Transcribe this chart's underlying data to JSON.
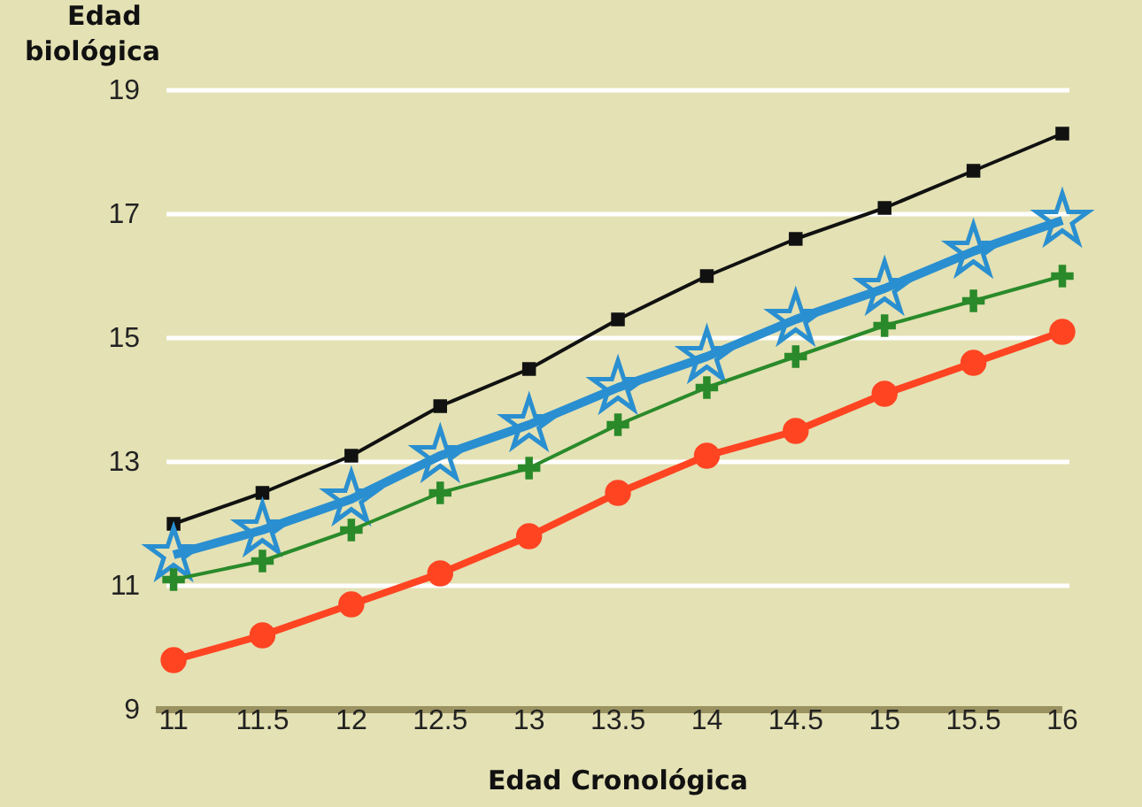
{
  "chart_data": {
    "type": "line",
    "xlabel": "Edad Cronológica",
    "ylabel": "Edad\nbiológica",
    "x": [
      11,
      11.5,
      12,
      12.5,
      13,
      13.5,
      14,
      14.5,
      15,
      15.5,
      16
    ],
    "xlim": [
      10.9,
      16
    ],
    "xticks": [
      11,
      11.5,
      12,
      12.5,
      13,
      13.5,
      14,
      14.5,
      15,
      15.5,
      16
    ],
    "ylim": [
      9,
      19
    ],
    "yticks": [
      9,
      11,
      13,
      15,
      17,
      19
    ],
    "grid": "y",
    "series": [
      {
        "color": "#111111",
        "marker": "square",
        "values": [
          12.0,
          12.5,
          13.1,
          13.9,
          14.5,
          15.3,
          16.0,
          16.6,
          17.1,
          17.7,
          18.3
        ]
      },
      {
        "color": "#2a8fd0",
        "marker": "star",
        "values": [
          11.5,
          11.9,
          12.4,
          13.1,
          13.6,
          14.2,
          14.7,
          15.3,
          15.8,
          16.4,
          16.9
        ]
      },
      {
        "color": "#2a8a2a",
        "marker": "cross",
        "values": [
          11.1,
          11.4,
          11.9,
          12.5,
          12.9,
          13.6,
          14.2,
          14.7,
          15.2,
          15.6,
          16.0
        ]
      },
      {
        "color": "#ff4422",
        "marker": "circle",
        "values": [
          9.8,
          10.2,
          10.7,
          11.2,
          11.8,
          12.5,
          13.1,
          13.5,
          14.1,
          14.6,
          15.1
        ]
      }
    ]
  }
}
